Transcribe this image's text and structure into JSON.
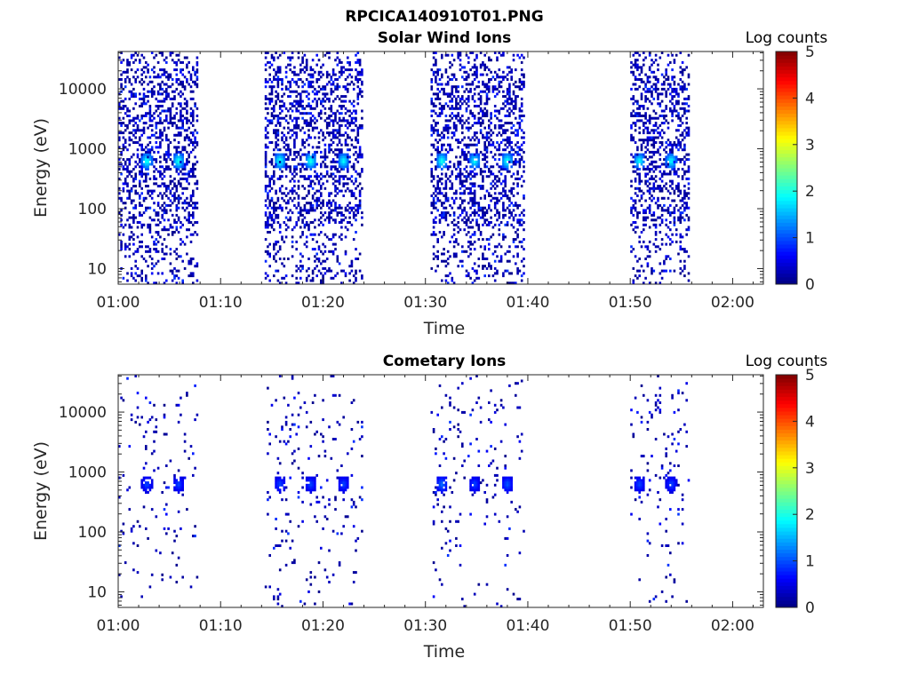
{
  "figure_title": "RPCICA140910T01.PNG",
  "chart_data": [
    {
      "type": "heatmap",
      "title": "Solar Wind Ions",
      "xlabel": "Time",
      "ylabel": "Energy (eV)",
      "x_ticks": [
        "01:00",
        "01:10",
        "01:20",
        "01:30",
        "01:40",
        "01:50",
        "02:00"
      ],
      "x_range_minutes": [
        0,
        63
      ],
      "y_ticks": [
        "10",
        "100",
        "1000",
        "10000"
      ],
      "y_scale": "log",
      "y_range": [
        5.5,
        42000
      ],
      "colorbar": {
        "label": "Log counts",
        "ticks": [
          "0",
          "1",
          "2",
          "3",
          "4",
          "5"
        ],
        "range": [
          0,
          5
        ],
        "colormap": "jet"
      },
      "data_windows_minutes": [
        [
          0,
          7.7
        ],
        [
          14.3,
          23.7
        ],
        [
          30.5,
          39.7
        ],
        [
          50,
          55.7
        ]
      ],
      "sweep_peaks": [
        {
          "t": 2.7,
          "e": 600,
          "v": 2.1
        },
        {
          "t": 5.8,
          "e": 600,
          "v": 2.1
        },
        {
          "t": 15.7,
          "e": 600,
          "v": 2.1
        },
        {
          "t": 18.7,
          "e": 600,
          "v": 2.1
        },
        {
          "t": 21.9,
          "e": 600,
          "v": 2.0
        },
        {
          "t": 31.5,
          "e": 600,
          "v": 2.1
        },
        {
          "t": 34.7,
          "e": 600,
          "v": 2.0
        },
        {
          "t": 37.9,
          "e": 600,
          "v": 2.1
        },
        {
          "t": 50.8,
          "e": 600,
          "v": 2.0
        },
        {
          "t": 53.9,
          "e": 600,
          "v": 2.0
        }
      ]
    },
    {
      "type": "heatmap",
      "title": "Cometary Ions",
      "xlabel": "Time",
      "ylabel": "Energy (eV)",
      "x_ticks": [
        "01:00",
        "01:10",
        "01:20",
        "01:30",
        "01:40",
        "01:50",
        "02:00"
      ],
      "x_range_minutes": [
        0,
        63
      ],
      "y_ticks": [
        "10",
        "100",
        "1000",
        "10000"
      ],
      "y_scale": "log",
      "y_range": [
        5.5,
        42000
      ],
      "colorbar": {
        "label": "Log counts",
        "ticks": [
          "0",
          "1",
          "2",
          "3",
          "4",
          "5"
        ],
        "range": [
          0,
          5
        ],
        "colormap": "jet"
      },
      "data_windows_minutes": [
        [
          0,
          7.7
        ],
        [
          14.3,
          23.7
        ],
        [
          30.5,
          39.7
        ],
        [
          50,
          55.7
        ]
      ],
      "sweep_peaks": [
        {
          "t": 2.7,
          "e": 600,
          "v": 1.0
        },
        {
          "t": 5.8,
          "e": 600,
          "v": 1.0
        },
        {
          "t": 15.7,
          "e": 600,
          "v": 1.0
        },
        {
          "t": 18.7,
          "e": 600,
          "v": 1.0
        },
        {
          "t": 21.9,
          "e": 600,
          "v": 1.0
        },
        {
          "t": 31.5,
          "e": 600,
          "v": 1.2
        },
        {
          "t": 34.7,
          "e": 600,
          "v": 1.0
        },
        {
          "t": 37.9,
          "e": 600,
          "v": 1.1
        },
        {
          "t": 50.8,
          "e": 600,
          "v": 1.0
        },
        {
          "t": 53.9,
          "e": 600,
          "v": 1.0
        }
      ]
    }
  ]
}
